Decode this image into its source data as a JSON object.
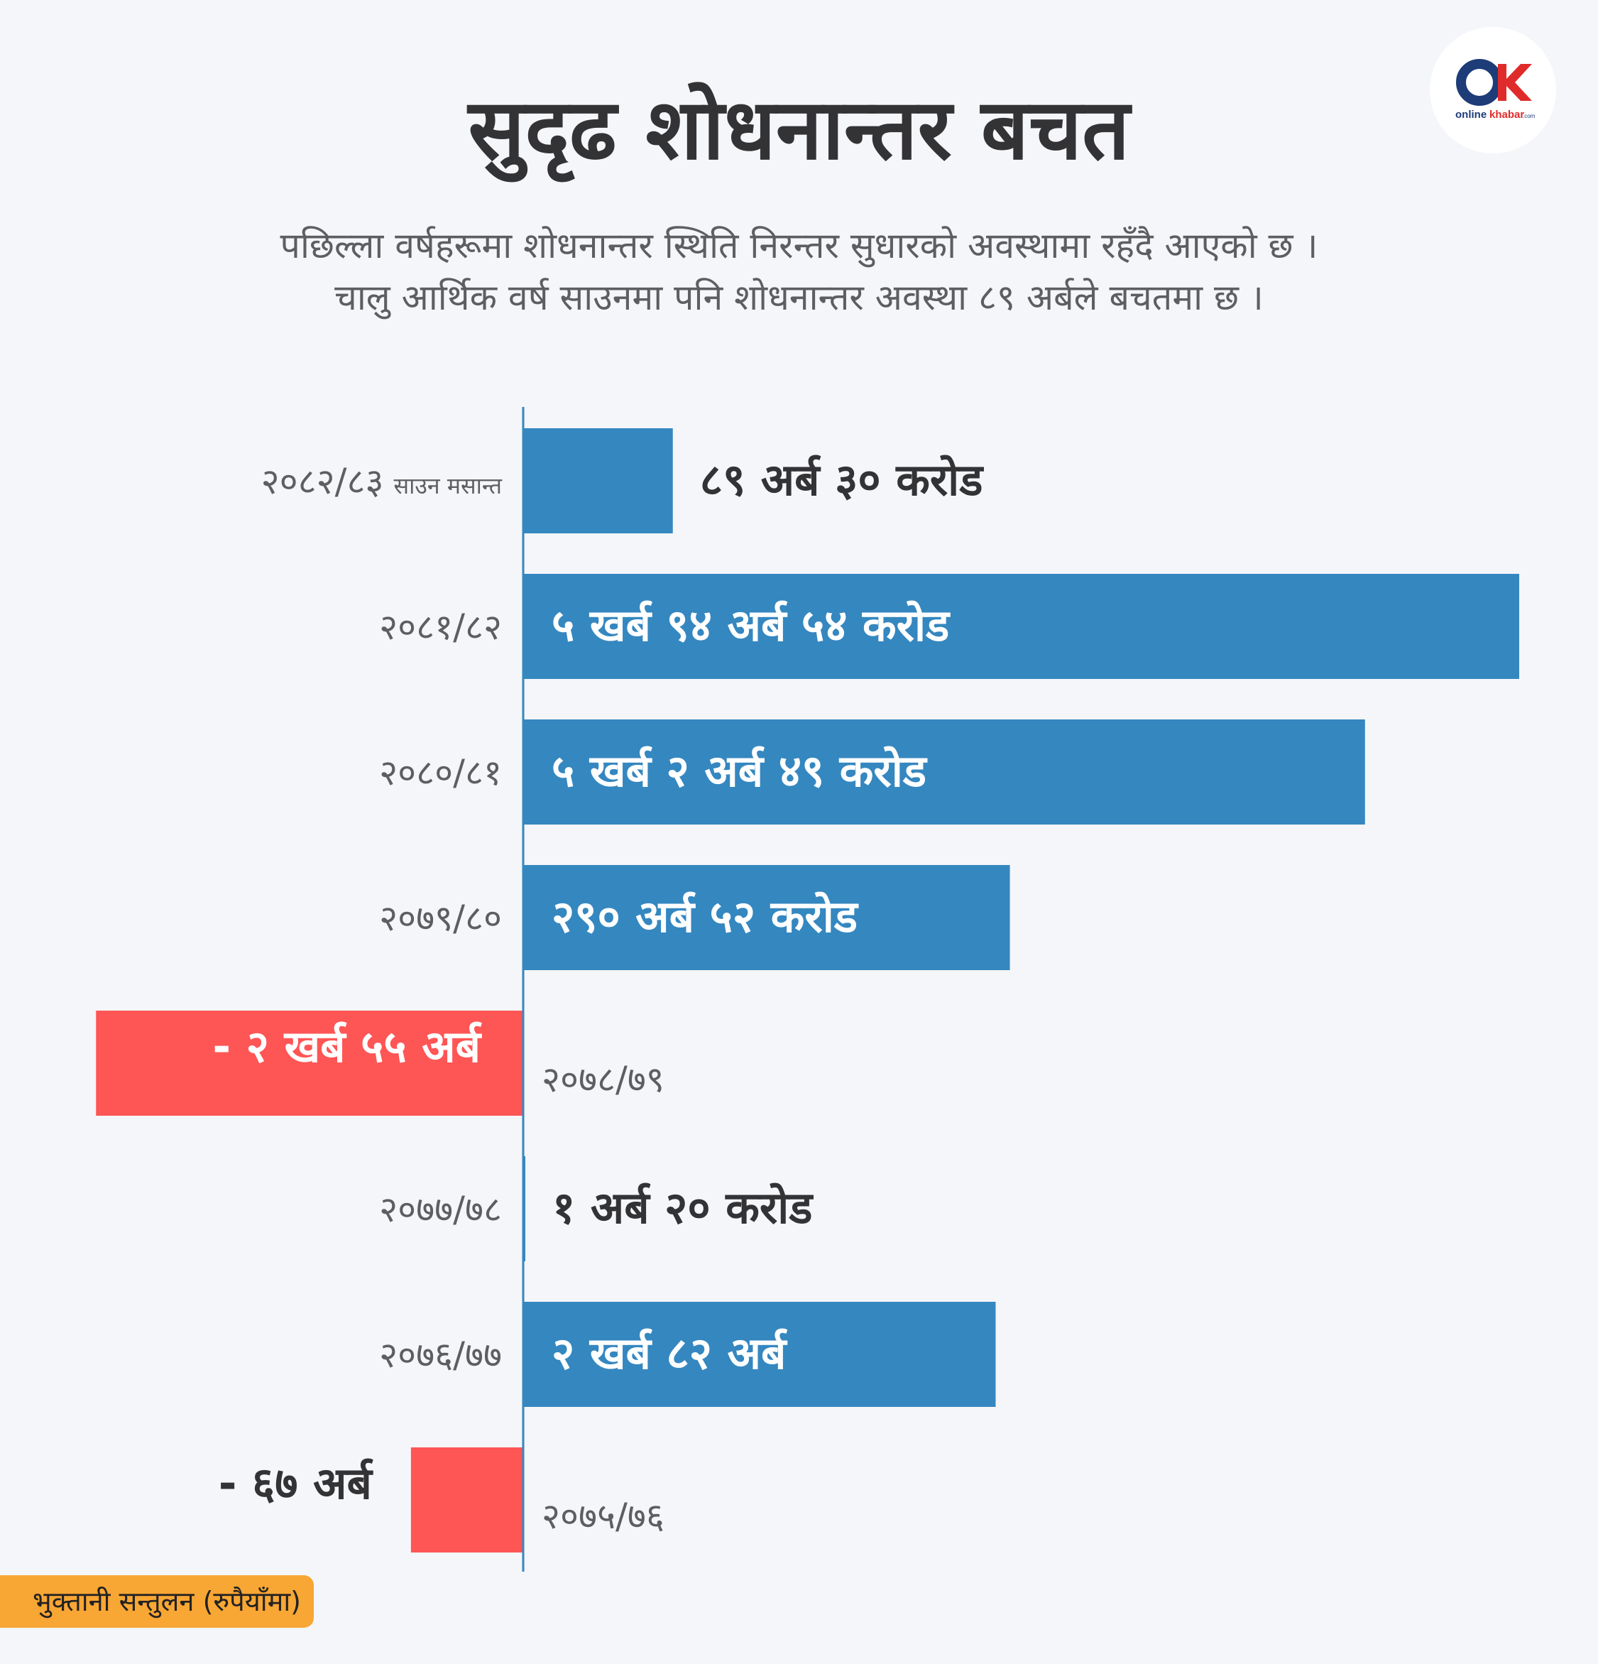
{
  "header": {
    "title": "सुदृढ शोधनान्तर बचत",
    "subtitle_line1": "पछिल्ला वर्षहरूमा शोधनान्तर स्थिति निरन्तर सुधारको अवस्थामा रहँदै आएको छ ।",
    "subtitle_line2": "चालु आर्थिक वर्ष साउनमा पनि शोधनान्तर अवस्था ८९ अर्बले बचतमा छ ।"
  },
  "logo": {
    "icon": "onlinekhabar-logo",
    "text_online": "online",
    "text_khabar": "khabar",
    "text_com": ".com",
    "colors": {
      "dark": "#1d3c78",
      "red": "#e02b2b",
      "blue": "#2f80c6"
    }
  },
  "legend": {
    "label": "भुक्तानी सन्तुलन (रुपैयाँमा)",
    "color": "#f8a634"
  },
  "colors": {
    "positive": "#3587c0",
    "negative": "#fe5555",
    "axis": "#3587c0",
    "label_dark": "#333335",
    "label_light": "#ffffff"
  },
  "chart_data": {
    "type": "bar",
    "orientation": "horizontal",
    "unit": "अर्ब रुपैयाँ",
    "categories": [
      "२०८२/८३",
      "२०८१/८२",
      "२०८०/८१",
      "२०७९/८०",
      "२०७८/७९",
      "२०७७/७८",
      "२०७६/७७",
      "२०७५/७६"
    ],
    "category_notes": [
      "साउन मसान्त",
      "",
      "",
      "",
      "",
      "",
      "",
      ""
    ],
    "values": [
      89.3,
      594.54,
      502.49,
      290.52,
      -255,
      1.2,
      282,
      -67
    ],
    "value_labels": [
      "८९ अर्ब ३० करोड",
      "५ खर्ब ९४ अर्ब ५४ करोड",
      "५ खर्ब २ अर्ब ४९ करोड",
      "२९० अर्ब ५२ करोड",
      "- २ खर्ब ५५ अर्ब",
      "१ अर्ब २० करोड",
      "२ खर्ब ८२ अर्ब",
      "- ६७ अर्ब"
    ],
    "xlim": [
      -255,
      594.54
    ],
    "grid": false,
    "legend": "bottom-left"
  }
}
